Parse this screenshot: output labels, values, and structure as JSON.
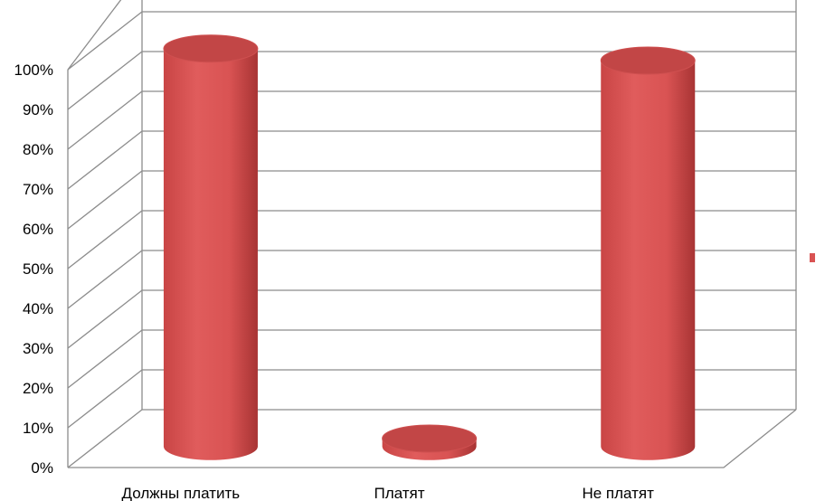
{
  "chart_data": {
    "type": "bar",
    "style": "3d-cylinder",
    "categories": [
      "Должны платить",
      "Платят",
      "Не платят"
    ],
    "series": [
      {
        "values": [
          100,
          2,
          97
        ]
      }
    ],
    "ylim": [
      0,
      100
    ],
    "yticks": [
      "0%",
      "10%",
      "20%",
      "30%",
      "40%",
      "50%",
      "60%",
      "70%",
      "80%",
      "90%",
      "100%"
    ],
    "grid": true,
    "legend": {
      "position": "right",
      "entries": [
        ""
      ]
    },
    "colors": {
      "bar": "#d95353",
      "bar_dark": "#b83b3b",
      "bar_top": "#c24646",
      "grid": "#8c8c8c",
      "legend_marker": "#d95353"
    }
  }
}
